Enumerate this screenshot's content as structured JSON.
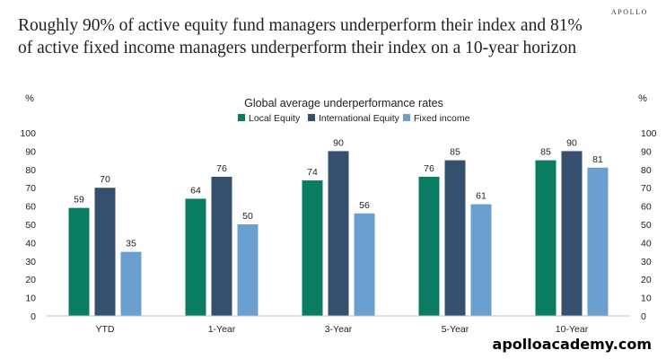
{
  "header": {
    "headline": "Roughly 90% of active equity fund managers underperform their index and 81% of active fixed income managers underperform their index on a 10-year horizon",
    "brand": "APOLLO"
  },
  "footer": {
    "url": "apolloacademy.com"
  },
  "colors": {
    "local_equity": "#0a7c62",
    "international_equity": "#35506f",
    "fixed_income": "#6a9fd0"
  },
  "chart_data": {
    "type": "bar",
    "title": "Global average underperformance rates",
    "ylabel_left": "%",
    "ylabel_right": "%",
    "ylim": [
      0,
      100
    ],
    "yticks": [
      0,
      10,
      20,
      30,
      40,
      50,
      60,
      70,
      80,
      90,
      100
    ],
    "grid": false,
    "legend_position": "top",
    "categories": [
      "YTD",
      "1-Year",
      "3-Year",
      "5-Year",
      "10-Year"
    ],
    "series": [
      {
        "name": "Local Equity",
        "values": [
          59,
          64,
          74,
          76,
          85
        ],
        "color": "#0a7c62"
      },
      {
        "name": "International Equity",
        "values": [
          70,
          76,
          90,
          85,
          90
        ],
        "color": "#35506f"
      },
      {
        "name": "Fixed income",
        "values": [
          35,
          50,
          56,
          61,
          81
        ],
        "color": "#6a9fd0"
      }
    ]
  }
}
